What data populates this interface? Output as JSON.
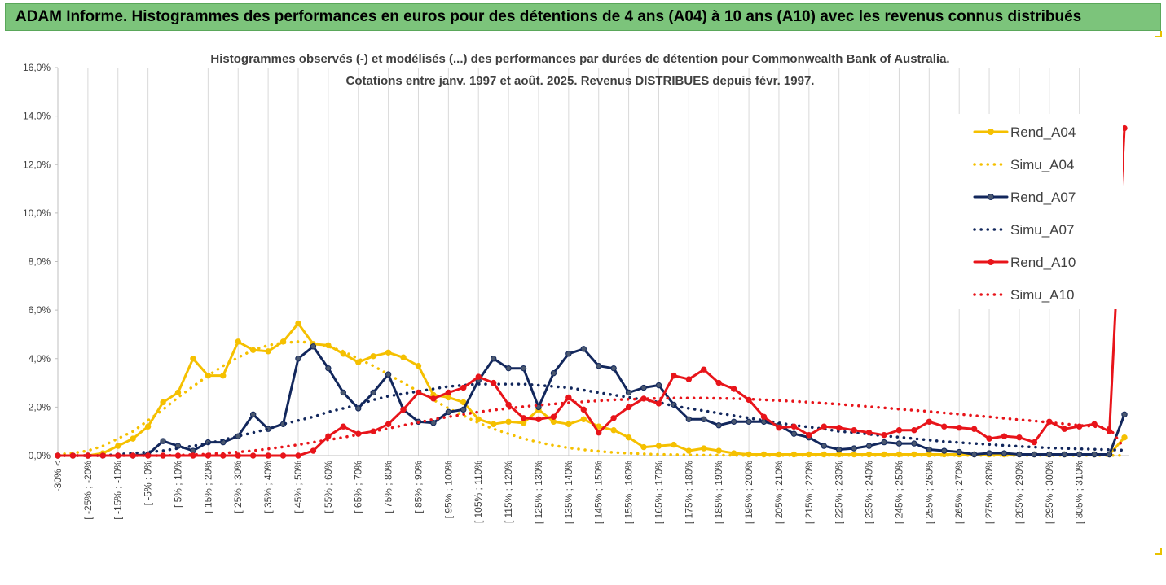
{
  "header": {
    "title": "ADAM Informe. Histogrammes des performances en euros pour des détentions de 4 ans (A04) à 10 ans (A10) avec les revenus connus distribués"
  },
  "chart_data": {
    "type": "line",
    "title": "Histogrammes observés (-) et modélisés (...) des performances par durées de détention pour Commonwealth Bank of Australia.",
    "subtitle": "Cotations entre janv. 1997 et août. 2025. Revenus DISTRIBUES depuis févr. 1997.",
    "xlabel": "",
    "ylabel": "",
    "ylim": [
      0,
      16
    ],
    "y_tick_labels": [
      "0,0%",
      "2,0%",
      "4,0%",
      "6,0%",
      "8,0%",
      "10,0%",
      "12,0%",
      "14,0%",
      "16,0%"
    ],
    "y_ticks": [
      0,
      2,
      4,
      6,
      8,
      10,
      12,
      14,
      16
    ],
    "grid": "vertical",
    "legend_position": "right",
    "x_tick_labels": [
      "-30% <",
      "[ -25% ; -20%",
      "[ -15% ; -10%",
      "[ -5% ; 0%",
      "[ 5% ; 10%",
      "[ 15% ; 20%",
      "[ 25% ; 30%",
      "[ 35% ; 40%",
      "[ 45% ; 50%",
      "[ 55% ; 60%",
      "[ 65% ; 70%",
      "[ 75% ; 80%",
      "[ 85% ; 90%",
      "[ 95% ; 100%",
      "[ 105% ; 110%",
      "[ 115% ; 120%",
      "[ 125% ; 130%",
      "[ 135% ; 140%",
      "[ 145% ; 150%",
      "[ 155% ; 160%",
      "[ 165% ; 170%",
      "[ 175% ; 180%",
      "[ 185% ; 190%",
      "[ 195% ; 200%",
      "[ 205% ; 210%",
      "[ 215% ; 220%",
      "[ 225% ; 230%",
      "[ 235% ; 240%",
      "[ 245% ; 250%",
      "[ 255% ; 260%",
      "[ 265% ; 270%",
      "[ 275% ; 280%",
      "[ 285% ; 290%",
      "[ 295% ; 300%",
      "[ 305% ; 310%"
    ],
    "series": [
      {
        "name": "Rend_A04",
        "style": "solid",
        "color": "#f5c000",
        "values": [
          0,
          0,
          0,
          0.1,
          0.4,
          0.7,
          1.2,
          2.2,
          2.6,
          4.0,
          3.3,
          3.3,
          4.7,
          4.35,
          4.3,
          4.7,
          5.45,
          4.6,
          4.55,
          4.2,
          3.85,
          4.1,
          4.25,
          4.05,
          3.7,
          2.5,
          2.4,
          2.2,
          1.5,
          1.3,
          1.4,
          1.35,
          1.9,
          1.4,
          1.3,
          1.5,
          1.2,
          1.05,
          0.75,
          0.35,
          0.4,
          0.45,
          0.2,
          0.3,
          0.2,
          0.1,
          0.05,
          0.05,
          0.05,
          0.05,
          0.05,
          0.05,
          0.05,
          0.05,
          0.05,
          0.05,
          0.05,
          0.05,
          0.05,
          0.05,
          0.05,
          0.05,
          0.05,
          0.05,
          0.05,
          0.05,
          0.05,
          0.05,
          0.05,
          0.05,
          0.05,
          0.75
        ]
      },
      {
        "name": "Simu_A04",
        "style": "dotted",
        "color": "#f5c000",
        "values": [
          0.05,
          0.1,
          0.2,
          0.4,
          0.7,
          1.0,
          1.45,
          1.9,
          2.4,
          2.85,
          3.3,
          3.7,
          4.05,
          4.35,
          4.55,
          4.65,
          4.7,
          4.65,
          4.5,
          4.3,
          4.0,
          3.7,
          3.35,
          3.0,
          2.65,
          2.3,
          1.95,
          1.65,
          1.35,
          1.1,
          0.9,
          0.7,
          0.55,
          0.42,
          0.32,
          0.24,
          0.18,
          0.13,
          0.1,
          0.07,
          0.05,
          0.04,
          0.03,
          0.02,
          0.02,
          0.01,
          0.01,
          0.01,
          0.01,
          0.01,
          0.01,
          0.01,
          0.01,
          0.01,
          0.01,
          0.01,
          0.01,
          0.01,
          0.01,
          0.01,
          0.01,
          0.01,
          0.01,
          0.01,
          0.01,
          0.01,
          0.01,
          0.01,
          0.01,
          0.01,
          0.01,
          0.01
        ]
      },
      {
        "name": "Rend_A07",
        "style": "solid",
        "color": "#12275c",
        "values": [
          0,
          0,
          0,
          0,
          0,
          0,
          0.05,
          0.6,
          0.4,
          0.2,
          0.55,
          0.55,
          0.8,
          1.7,
          1.1,
          1.3,
          4.0,
          4.5,
          3.6,
          2.6,
          1.95,
          2.6,
          3.35,
          1.9,
          1.4,
          1.35,
          1.8,
          1.9,
          3.1,
          4.0,
          3.6,
          3.6,
          2.0,
          3.4,
          4.2,
          4.4,
          3.7,
          3.6,
          2.6,
          2.8,
          2.9,
          2.1,
          1.5,
          1.5,
          1.25,
          1.4,
          1.4,
          1.4,
          1.25,
          0.9,
          0.75,
          0.4,
          0.25,
          0.3,
          0.4,
          0.55,
          0.5,
          0.5,
          0.25,
          0.2,
          0.15,
          0.05,
          0.1,
          0.1,
          0.05,
          0.05,
          0.05,
          0.05,
          0.05,
          0.05,
          0.05,
          1.7
        ]
      },
      {
        "name": "Simu_A07",
        "style": "dotted",
        "color": "#12275c",
        "values": [
          0,
          0,
          0,
          0,
          0.05,
          0.1,
          0.15,
          0.2,
          0.3,
          0.4,
          0.5,
          0.65,
          0.8,
          0.95,
          1.1,
          1.3,
          1.45,
          1.6,
          1.8,
          1.95,
          2.1,
          2.3,
          2.45,
          2.55,
          2.65,
          2.75,
          2.85,
          2.9,
          2.95,
          2.95,
          2.95,
          2.95,
          2.9,
          2.85,
          2.8,
          2.7,
          2.6,
          2.5,
          2.4,
          2.3,
          2.2,
          2.05,
          1.95,
          1.85,
          1.75,
          1.65,
          1.55,
          1.45,
          1.35,
          1.25,
          1.18,
          1.1,
          1.0,
          0.95,
          0.88,
          0.82,
          0.76,
          0.7,
          0.64,
          0.58,
          0.54,
          0.5,
          0.46,
          0.42,
          0.38,
          0.35,
          0.32,
          0.3,
          0.28,
          0.26,
          0.24,
          0.22
        ]
      },
      {
        "name": "Rend_A10",
        "style": "solid",
        "color": "#e8141a",
        "values": [
          0,
          0,
          0,
          0,
          0,
          0,
          0,
          0,
          0,
          0,
          0,
          0,
          0,
          0,
          0,
          0,
          0,
          0.2,
          0.8,
          1.2,
          0.9,
          1.0,
          1.3,
          1.9,
          2.6,
          2.35,
          2.6,
          2.8,
          3.25,
          3.0,
          2.1,
          1.55,
          1.5,
          1.6,
          2.4,
          1.9,
          0.95,
          1.55,
          2.0,
          2.35,
          2.15,
          3.3,
          3.15,
          3.55,
          3.0,
          2.75,
          2.3,
          1.6,
          1.15,
          1.2,
          0.85,
          1.2,
          1.15,
          1.05,
          0.95,
          0.85,
          1.05,
          1.05,
          1.4,
          1.2,
          1.15,
          1.1,
          0.7,
          0.8,
          0.75,
          0.55,
          1.4,
          1.1,
          1.2,
          1.3,
          1.0,
          13.5
        ]
      },
      {
        "name": "Simu_A10",
        "style": "dotted",
        "color": "#e8141a",
        "values": [
          0,
          0,
          0,
          0,
          0,
          0,
          0,
          0,
          0.02,
          0.04,
          0.06,
          0.1,
          0.15,
          0.2,
          0.28,
          0.36,
          0.45,
          0.55,
          0.65,
          0.75,
          0.87,
          1.0,
          1.12,
          1.25,
          1.37,
          1.5,
          1.6,
          1.7,
          1.8,
          1.88,
          1.95,
          2.02,
          2.08,
          2.13,
          2.18,
          2.22,
          2.26,
          2.3,
          2.32,
          2.34,
          2.36,
          2.37,
          2.37,
          2.37,
          2.36,
          2.35,
          2.33,
          2.3,
          2.27,
          2.24,
          2.2,
          2.16,
          2.12,
          2.07,
          2.02,
          1.97,
          1.92,
          1.87,
          1.82,
          1.76,
          1.71,
          1.65,
          1.6,
          1.54,
          1.48,
          1.43,
          1.37,
          1.31,
          1.25,
          1.2,
          1.14,
          0.3
        ]
      }
    ]
  }
}
